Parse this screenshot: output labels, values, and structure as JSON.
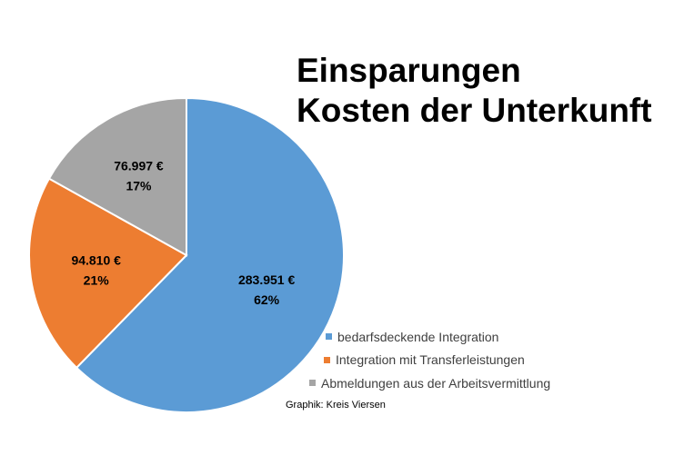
{
  "title": {
    "line1": "Einsparungen",
    "line2": "Kosten der Unterkunft"
  },
  "credit": "Graphik: Kreis Viersen",
  "chart_data": {
    "type": "pie",
    "title": "Einsparungen Kosten der Unterkunft",
    "slices": [
      {
        "name": "bedarfsdeckende Integration",
        "value": 283951,
        "value_label": "283.951 €",
        "percent_label": "62%",
        "color": "#5B9BD5"
      },
      {
        "name": "Integration mit Transferleistungen",
        "value": 94810,
        "value_label": "94.810 €",
        "percent_label": "21%",
        "color": "#ED7D31"
      },
      {
        "name": "Abmeldungen aus der Arbeitsvermittlung",
        "value": 76997,
        "value_label": "76.997 €",
        "percent_label": "17%",
        "color": "#A5A5A5"
      }
    ],
    "legend_position": "right"
  }
}
